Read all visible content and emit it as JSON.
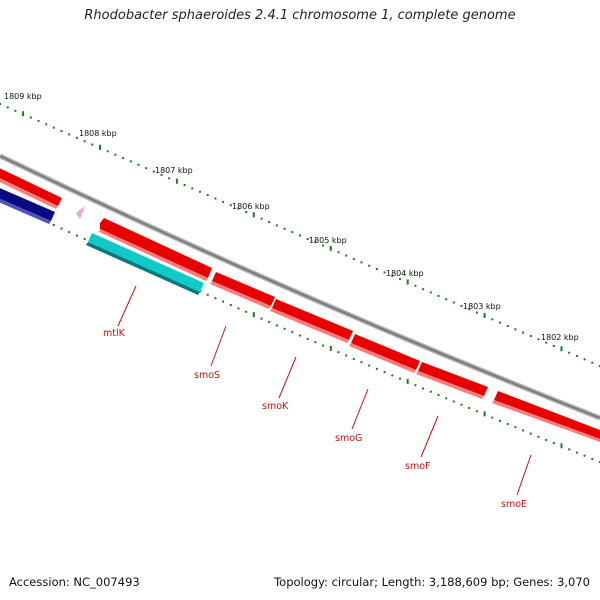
{
  "title": "Rhodobacter sphaeroides 2.4.1 chromosome 1, complete genome",
  "kbp_labels": [
    "1809 kbp",
    "1808 kbp",
    "1807 kbp",
    "1806 kbp",
    "1805 kbp",
    "1804 kbp",
    "1803 kbp",
    "1802 kbp"
  ],
  "gene_labels": [
    "mtlK",
    "smoS",
    "smoK",
    "smoG",
    "smoF",
    "smoE"
  ],
  "footer": {
    "accession": "Accession: NC_007493",
    "summary": "Topology: circular; Length: 3,188,609 bp; Genes: 3,070"
  },
  "colors": {
    "backbone": "#8a8a8a",
    "gene_red": "#e60000",
    "gene_cyan": "#12c8c8",
    "gene_navy": "#0a0a80",
    "tick_green": "#1e7a1e",
    "label_red": "#c01010"
  }
}
